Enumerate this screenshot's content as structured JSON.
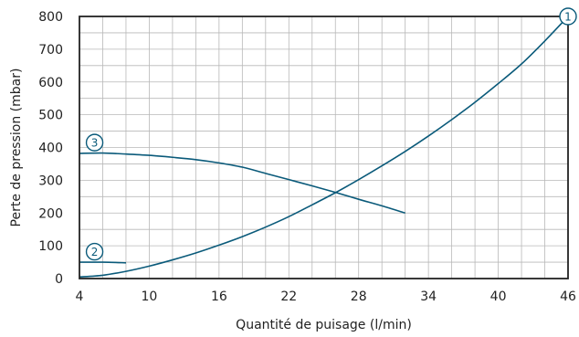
{
  "chart_data": {
    "type": "line",
    "title": "",
    "xlabel": "Quantité de puisage (l/min)",
    "ylabel": "Perte de pression (mbar)",
    "xlim": [
      4,
      46
    ],
    "ylim": [
      0,
      800
    ],
    "x_ticks": [
      4,
      10,
      16,
      22,
      28,
      34,
      40,
      46
    ],
    "y_ticks": [
      0,
      100,
      200,
      300,
      400,
      500,
      600,
      700,
      800
    ],
    "x_minor_step": 2,
    "y_minor_step": 50,
    "grid": true,
    "colors": {
      "line": "#0a5a7a",
      "grid": "#b8b8b8",
      "frame": "#222222"
    },
    "series": [
      {
        "marker": "1",
        "points": [
          [
            4,
            5
          ],
          [
            6,
            10
          ],
          [
            8,
            22
          ],
          [
            10,
            38
          ],
          [
            12,
            57
          ],
          [
            14,
            78
          ],
          [
            16,
            102
          ],
          [
            18,
            128
          ],
          [
            20,
            157
          ],
          [
            22,
            189
          ],
          [
            24,
            225
          ],
          [
            26,
            262
          ],
          [
            28,
            302
          ],
          [
            30,
            344
          ],
          [
            32,
            388
          ],
          [
            34,
            435
          ],
          [
            36,
            485
          ],
          [
            38,
            538
          ],
          [
            40,
            595
          ],
          [
            42,
            655
          ],
          [
            44,
            725
          ],
          [
            46,
            800
          ]
        ]
      },
      {
        "marker": "2",
        "points": [
          [
            4,
            50
          ],
          [
            6,
            50
          ],
          [
            8,
            48
          ]
        ]
      },
      {
        "marker": "3",
        "points": [
          [
            4,
            382
          ],
          [
            6,
            383
          ],
          [
            8,
            380
          ],
          [
            10,
            376
          ],
          [
            12,
            370
          ],
          [
            14,
            363
          ],
          [
            16,
            353
          ],
          [
            18,
            340
          ],
          [
            20,
            321
          ],
          [
            22,
            302
          ],
          [
            24,
            283
          ],
          [
            26,
            263
          ],
          [
            28,
            242
          ],
          [
            30,
            222
          ],
          [
            32,
            200
          ]
        ]
      }
    ],
    "markers": [
      {
        "label": "1",
        "x": 46,
        "y": 800,
        "series_index": 0
      },
      {
        "label": "2",
        "x": 5.3,
        "y": 82,
        "series_index": 1
      },
      {
        "label": "3",
        "x": 5.3,
        "y": 415,
        "series_index": 2
      }
    ]
  }
}
